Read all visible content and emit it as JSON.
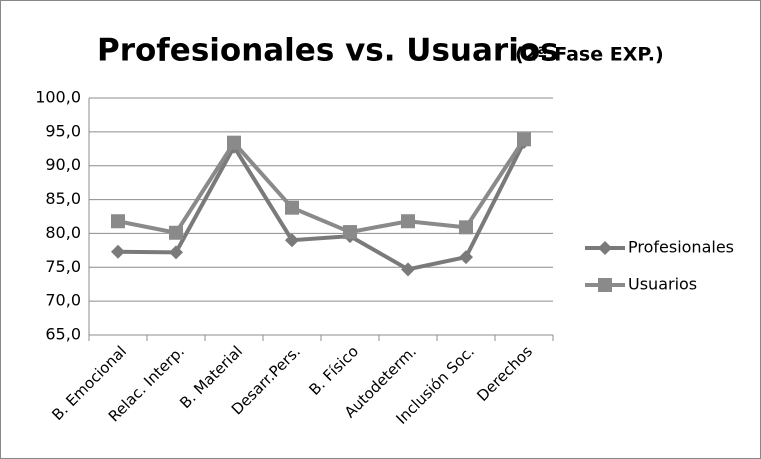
{
  "chart_data": {
    "type": "line",
    "title": "Profesionales vs. Usuarios",
    "subtitle": "(2ª Fase EXP.)",
    "categories": [
      "B. Emocional",
      "Relac. Interp.",
      "B. Material",
      "Desarr.Pers.",
      "B. Físico",
      "Autodeterm.",
      "Inclusión Soc.",
      "Derechos"
    ],
    "series": [
      {
        "name": "Profesionales",
        "color": "#7a7a7a",
        "marker": "diamond",
        "values": [
          77.3,
          77.2,
          92.8,
          79.0,
          79.6,
          74.7,
          76.5,
          93.5
        ]
      },
      {
        "name": "Usuarios",
        "color": "#8a8a8a",
        "marker": "square",
        "values": [
          81.8,
          80.1,
          93.4,
          83.8,
          80.2,
          81.8,
          80.9,
          93.9
        ]
      }
    ],
    "ylim": [
      65,
      100
    ],
    "yticks": [
      {
        "value": 65,
        "label": "65,0"
      },
      {
        "value": 70,
        "label": "70,0"
      },
      {
        "value": 75,
        "label": "75,0"
      },
      {
        "value": 80,
        "label": "80,0"
      },
      {
        "value": 85,
        "label": "85,0"
      },
      {
        "value": 90,
        "label": "90,0"
      },
      {
        "value": 95,
        "label": "95,0"
      },
      {
        "value": 100,
        "label": "100,0"
      }
    ],
    "grid": true,
    "legend": "right"
  }
}
